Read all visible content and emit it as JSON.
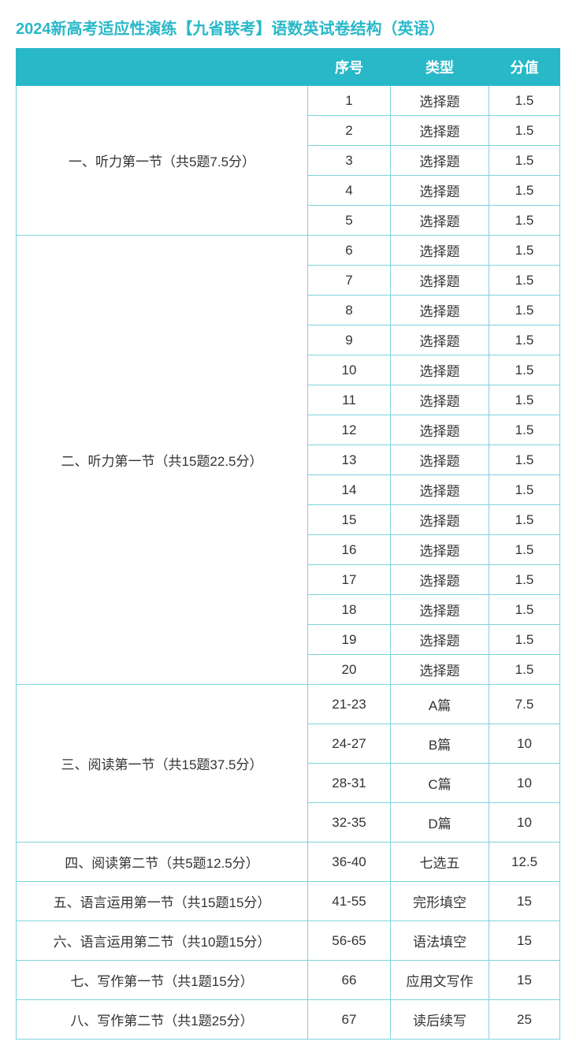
{
  "title": "2024新高考适应性演练【九省联考】语数英试卷结构（英语）",
  "headers": {
    "number": "序号",
    "type": "类型",
    "score": "分值"
  },
  "colors": {
    "accent": "#29b8c8",
    "border": "#7dd3de",
    "text": "#333333",
    "header_text": "#ffffff",
    "background": "#ffffff"
  },
  "sections": [
    {
      "label": "一、听力第一节（共5题7.5分）",
      "tall": false,
      "rows": [
        {
          "num": "1",
          "type": "选择题",
          "score": "1.5"
        },
        {
          "num": "2",
          "type": "选择题",
          "score": "1.5"
        },
        {
          "num": "3",
          "type": "选择题",
          "score": "1.5"
        },
        {
          "num": "4",
          "type": "选择题",
          "score": "1.5"
        },
        {
          "num": "5",
          "type": "选择题",
          "score": "1.5"
        }
      ]
    },
    {
      "label": "二、听力第一节（共15题22.5分）",
      "tall": false,
      "rows": [
        {
          "num": "6",
          "type": "选择题",
          "score": "1.5"
        },
        {
          "num": "7",
          "type": "选择题",
          "score": "1.5"
        },
        {
          "num": "8",
          "type": "选择题",
          "score": "1.5"
        },
        {
          "num": "9",
          "type": "选择题",
          "score": "1.5"
        },
        {
          "num": "10",
          "type": "选择题",
          "score": "1.5"
        },
        {
          "num": "11",
          "type": "选择题",
          "score": "1.5"
        },
        {
          "num": "12",
          "type": "选择题",
          "score": "1.5"
        },
        {
          "num": "13",
          "type": "选择题",
          "score": "1.5"
        },
        {
          "num": "14",
          "type": "选择题",
          "score": "1.5"
        },
        {
          "num": "15",
          "type": "选择题",
          "score": "1.5"
        },
        {
          "num": "16",
          "type": "选择题",
          "score": "1.5"
        },
        {
          "num": "17",
          "type": "选择题",
          "score": "1.5"
        },
        {
          "num": "18",
          "type": "选择题",
          "score": "1.5"
        },
        {
          "num": "19",
          "type": "选择题",
          "score": "1.5"
        },
        {
          "num": "20",
          "type": "选择题",
          "score": "1.5"
        }
      ]
    },
    {
      "label": "三、阅读第一节（共15题37.5分）",
      "tall": true,
      "rows": [
        {
          "num": "21-23",
          "type": "A篇",
          "score": "7.5"
        },
        {
          "num": "24-27",
          "type": "B篇",
          "score": "10"
        },
        {
          "num": "28-31",
          "type": "C篇",
          "score": "10"
        },
        {
          "num": "32-35",
          "type": "D篇",
          "score": "10"
        }
      ]
    },
    {
      "label": "四、阅读第二节（共5题12.5分）",
      "tall": true,
      "rows": [
        {
          "num": "36-40",
          "type": "七选五",
          "score": "12.5"
        }
      ]
    },
    {
      "label": "五、语言运用第一节（共15题15分）",
      "tall": true,
      "rows": [
        {
          "num": "41-55",
          "type": "完形填空",
          "score": "15"
        }
      ]
    },
    {
      "label": "六、语言运用第二节（共10题15分）",
      "tall": true,
      "rows": [
        {
          "num": "56-65",
          "type": "语法填空",
          "score": "15"
        }
      ]
    },
    {
      "label": "七、写作第一节（共1题15分）",
      "tall": true,
      "rows": [
        {
          "num": "66",
          "type": "应用文写作",
          "score": "15"
        }
      ]
    },
    {
      "label": "八、写作第二节（共1题25分）",
      "tall": true,
      "rows": [
        {
          "num": "67",
          "type": "读后续写",
          "score": "25"
        }
      ]
    }
  ]
}
